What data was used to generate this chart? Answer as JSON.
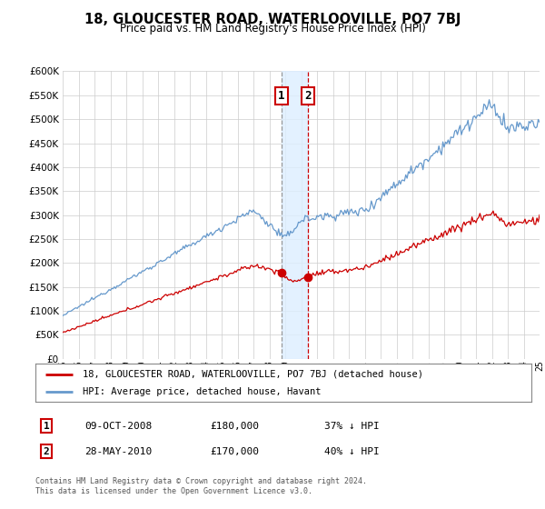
{
  "title": "18, GLOUCESTER ROAD, WATERLOOVILLE, PO7 7BJ",
  "subtitle": "Price paid vs. HM Land Registry's House Price Index (HPI)",
  "legend_entry1": "18, GLOUCESTER ROAD, WATERLOOVILLE, PO7 7BJ (detached house)",
  "legend_entry2": "HPI: Average price, detached house, Havant",
  "annotation1_date": "09-OCT-2008",
  "annotation1_price": "£180,000",
  "annotation1_hpi": "37% ↓ HPI",
  "annotation2_date": "28-MAY-2010",
  "annotation2_price": "£170,000",
  "annotation2_hpi": "40% ↓ HPI",
  "footnote": "Contains HM Land Registry data © Crown copyright and database right 2024.\nThis data is licensed under the Open Government Licence v3.0.",
  "red_color": "#cc0000",
  "blue_color": "#6699cc",
  "grey_color": "#999999",
  "annotation_box_color": "#cc0000",
  "shading_color": "#ddeeff",
  "grid_color": "#cccccc",
  "bg_color": "#ffffff",
  "ylim_min": 0,
  "ylim_max": 600000,
  "ytick_step": 50000,
  "year_start": 1995,
  "year_end": 2025,
  "sale1_year": 2008.77,
  "sale2_year": 2010.41,
  "sale1_value": 180000,
  "sale2_value": 170000,
  "fig_width": 6.0,
  "fig_height": 5.6
}
